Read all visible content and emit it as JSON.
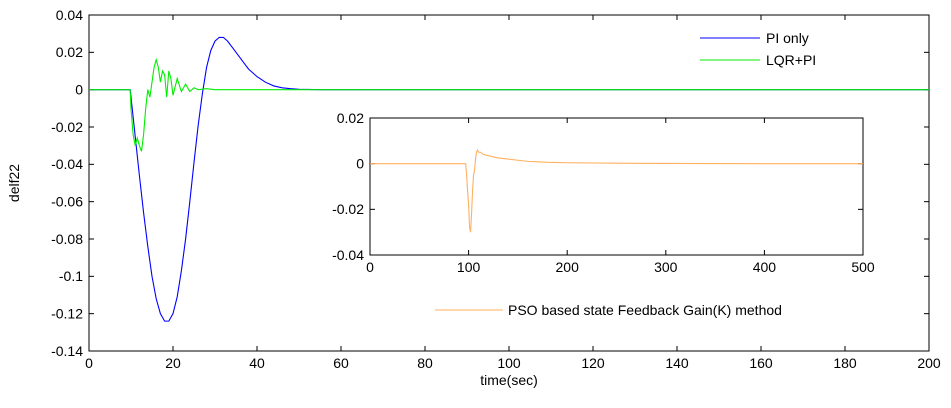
{
  "chart_data": [
    {
      "type": "line",
      "xlabel": "time(sec)",
      "ylabel": "delf22",
      "xlim": [
        0,
        200
      ],
      "ylim": [
        -0.14,
        0.04
      ],
      "xticks": [
        "0",
        "20",
        "40",
        "60",
        "80",
        "100",
        "120",
        "140",
        "160",
        "180",
        "200"
      ],
      "yticks": [
        "-0.14",
        "-0.12",
        "-0.1",
        "-0.08",
        "-0.06",
        "-0.04",
        "-0.02",
        "0",
        "0.02",
        "0.04"
      ],
      "grid": false,
      "legend_position": "top-right",
      "series": [
        {
          "name": "PI only",
          "color": "#0000ff",
          "x": [
            0,
            9.8,
            10,
            11,
            12,
            13,
            14,
            15,
            16,
            17,
            18,
            19,
            20,
            21,
            22,
            23,
            24,
            25,
            26,
            27,
            28,
            29,
            30,
            31,
            32,
            33,
            34,
            35,
            36,
            37,
            38,
            40,
            42,
            44,
            46,
            48,
            50,
            52,
            55,
            60,
            70,
            100,
            150,
            200
          ],
          "y": [
            0,
            0,
            -0.004,
            -0.025,
            -0.046,
            -0.066,
            -0.084,
            -0.1,
            -0.112,
            -0.12,
            -0.124,
            -0.124,
            -0.12,
            -0.111,
            -0.097,
            -0.08,
            -0.06,
            -0.039,
            -0.019,
            -0.002,
            0.012,
            0.021,
            0.026,
            0.028,
            0.028,
            0.026,
            0.023,
            0.02,
            0.017,
            0.014,
            0.011,
            0.007,
            0.004,
            0.002,
            0.001,
            0.0005,
            0.0002,
            0.0001,
            0,
            0,
            0,
            0,
            0,
            0
          ]
        },
        {
          "name": "LQR+PI",
          "color": "#00ee00",
          "x": [
            0,
            9.8,
            10,
            10.5,
            11,
            11.5,
            12,
            12.5,
            13,
            13.5,
            14,
            14.5,
            15,
            15.5,
            16,
            16.5,
            17,
            17.5,
            18,
            18.5,
            19,
            19.5,
            20,
            21,
            22,
            23,
            24,
            25,
            26,
            28,
            30,
            35,
            40,
            60,
            100,
            200
          ],
          "y": [
            0,
            0,
            -0.01,
            -0.024,
            -0.03,
            -0.026,
            -0.03,
            -0.033,
            -0.024,
            -0.01,
            0,
            -0.004,
            0.004,
            0.012,
            0.016,
            0.012,
            0.004,
            0.01,
            0.008,
            -0.004,
            0.01,
            0.006,
            -0.003,
            0.006,
            -0.001,
            0.003,
            -0.001,
            0.001,
            0,
            0.0005,
            0,
            0,
            0,
            0,
            0,
            0
          ]
        }
      ]
    },
    {
      "type": "line",
      "xlim": [
        0,
        500
      ],
      "ylim": [
        -0.04,
        0.02
      ],
      "xticks": [
        "0",
        "100",
        "200",
        "300",
        "400",
        "500"
      ],
      "yticks": [
        "-0.04",
        "-0.02",
        "0",
        "0.02"
      ],
      "grid": false,
      "legend_position": "bottom",
      "series": [
        {
          "name": "PSO based state Feedback Gain(K) method",
          "color": "#ffb060",
          "x": [
            0,
            97,
            98,
            99,
            100,
            101,
            102,
            103,
            104,
            105,
            106,
            107,
            108,
            109,
            110,
            112,
            115,
            120,
            125,
            130,
            140,
            150,
            160,
            170,
            180,
            200,
            250,
            300,
            400,
            500
          ],
          "y": [
            0,
            0,
            -0.005,
            -0.012,
            -0.018,
            -0.028,
            -0.03,
            -0.022,
            -0.012,
            -0.005,
            -0.003,
            0.002,
            0.005,
            0.006,
            0.005,
            0.005,
            0.004,
            0.0035,
            0.003,
            0.0025,
            0.002,
            0.0015,
            0.001,
            0.0008,
            0.0006,
            0.0004,
            0.0002,
            0.0001,
            0,
            0
          ]
        }
      ]
    }
  ]
}
